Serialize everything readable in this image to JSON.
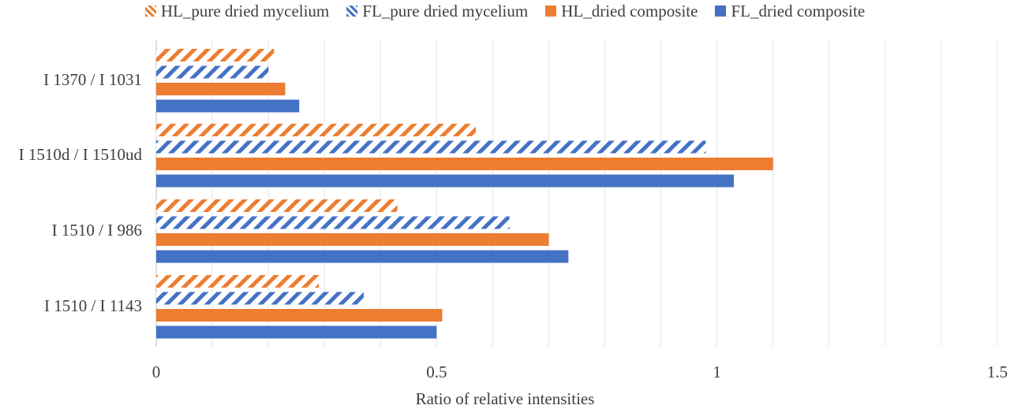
{
  "chart_data": {
    "type": "bar",
    "orientation": "horizontal",
    "categories": [
      "I 1370 / I 1031",
      "I 1510d / I 1510ud",
      "I 1510 / I 986",
      "I 1510 / I 1143"
    ],
    "series": [
      {
        "name": "HL_pure dried mycelium",
        "values": [
          0.21,
          0.57,
          0.43,
          0.29
        ],
        "color": "#ED7D31",
        "pattern": "hatched"
      },
      {
        "name": "FL_pure dried mycelium",
        "values": [
          0.2,
          0.98,
          0.63,
          0.37
        ],
        "color": "#4472C4",
        "pattern": "hatched"
      },
      {
        "name": "HL_dried composite",
        "values": [
          0.23,
          1.1,
          0.7,
          0.51
        ],
        "color": "#ED7D31",
        "pattern": "solid"
      },
      {
        "name": "FL_dried composite",
        "values": [
          0.255,
          1.03,
          0.735,
          0.5
        ],
        "color": "#4472C4",
        "pattern": "solid"
      }
    ],
    "xlabel": "Ratio of relative intensities",
    "xlim": [
      0,
      1.5
    ],
    "x_ticks": [
      "0",
      "0.5",
      "1",
      "1.5"
    ],
    "grid": "vertical",
    "legend": "top"
  }
}
